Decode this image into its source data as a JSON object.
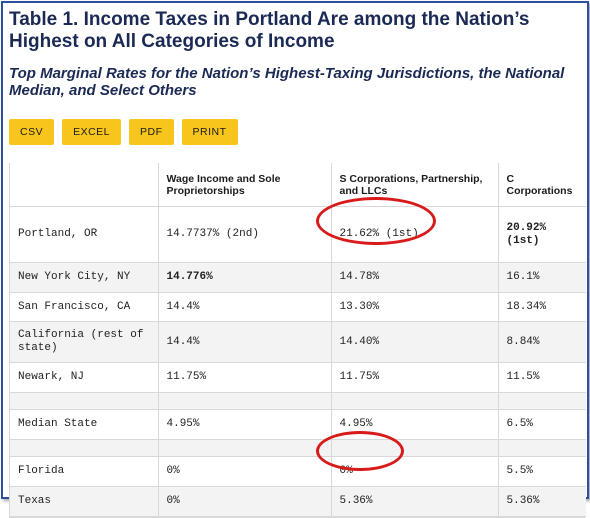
{
  "header": {
    "title": "Table 1. Income Taxes in Portland Are among the Nation’s Highest on All Categories of Income",
    "subtitle": "Top Marginal Rates for the Nation’s Highest-Taxing Jurisdictions, the National Median, and Select Others"
  },
  "toolbar": {
    "csv_label": "CSV",
    "excel_label": "EXCEL",
    "pdf_label": "PDF",
    "print_label": "PRINT",
    "button_color": "#f7c51b"
  },
  "table": {
    "columns": [
      "",
      "Wage Income and Sole Proprietorships",
      "S Corporations, Partnership, and LLCs",
      "C Corporations"
    ],
    "rows": [
      {
        "name": "Portland, OR",
        "wage": "14.7737% (2nd)",
        "s_corp": "21.62% (1st)",
        "c_corp": "20.92% (1st)"
      },
      {
        "name": "New York City, NY",
        "wage": "14.776%",
        "s_corp": "14.78%",
        "c_corp": "16.1%"
      },
      {
        "name": "San Francisco, CA",
        "wage": "14.4%",
        "s_corp": "13.30%",
        "c_corp": "18.34%"
      },
      {
        "name": "California (rest of state)",
        "wage": "14.4%",
        "s_corp": "14.40%",
        "c_corp": "8.84%"
      },
      {
        "name": "Newark, NJ",
        "wage": "11.75%",
        "s_corp": "11.75%",
        "c_corp": "11.5%"
      },
      {
        "name": "",
        "wage": "",
        "s_corp": "",
        "c_corp": ""
      },
      {
        "name": "Median State",
        "wage": "4.95%",
        "s_corp": "4.95%",
        "c_corp": "6.5%"
      },
      {
        "name": "",
        "wage": "",
        "s_corp": "",
        "c_corp": ""
      },
      {
        "name": "Florida",
        "wage": "0%",
        "s_corp": "0%",
        "c_corp": "5.5%"
      },
      {
        "name": "Texas",
        "wage": "0%",
        "s_corp": "5.36%",
        "c_corp": "5.36%"
      }
    ]
  },
  "annotations": {
    "highlight_color": "#d81a1a"
  }
}
